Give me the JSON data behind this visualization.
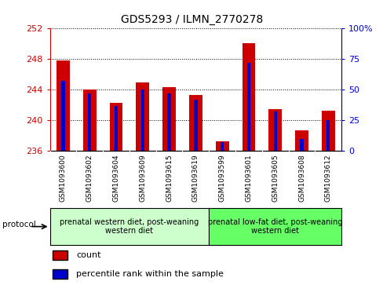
{
  "title": "GDS5293 / ILMN_2770278",
  "samples": [
    "GSM1093600",
    "GSM1093602",
    "GSM1093604",
    "GSM1093609",
    "GSM1093615",
    "GSM1093619",
    "GSM1093599",
    "GSM1093601",
    "GSM1093605",
    "GSM1093608",
    "GSM1093612"
  ],
  "red_values": [
    247.8,
    244.0,
    242.3,
    245.0,
    244.3,
    243.3,
    237.3,
    250.1,
    241.5,
    238.7,
    241.3
  ],
  "blue_percentile": [
    57,
    47,
    37,
    50,
    47,
    42,
    7,
    72,
    32,
    10,
    25
  ],
  "ylim_left": [
    236,
    252
  ],
  "ylim_right": [
    0,
    100
  ],
  "yticks_left": [
    236,
    240,
    244,
    248,
    252
  ],
  "yticks_right": [
    0,
    25,
    50,
    75,
    100
  ],
  "group1_count": 6,
  "group2_count": 5,
  "group1_label": "prenatal western diet, post-weaning\nwestern diet",
  "group2_label": "prenatal low-fat diet, post-weaning\nwestern diet",
  "protocol_label": "protocol",
  "red_color": "#cc0000",
  "blue_color": "#0000cc",
  "group1_bg": "#ccffcc",
  "group2_bg": "#66ff66",
  "tick_bg": "#d3d3d3",
  "bar_width": 0.5,
  "base_value": 236,
  "legend_red": "count",
  "legend_blue": "percentile rank within the sample"
}
